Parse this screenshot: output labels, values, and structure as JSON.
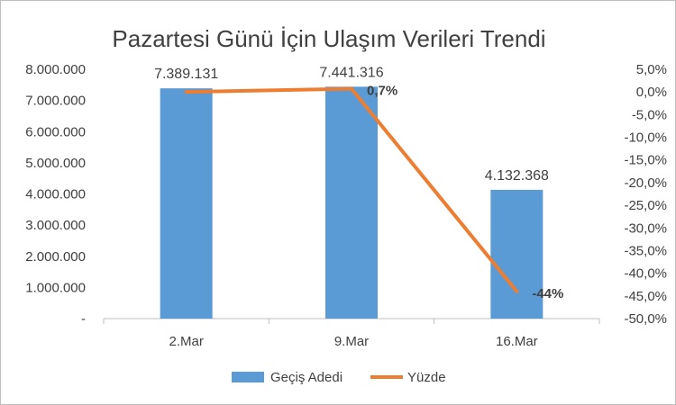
{
  "chart_data": {
    "type": "bar",
    "title": "Pazartesi Günü İçin Ulaşım Verileri Trendi",
    "categories": [
      "2.Mar",
      "9.Mar",
      "16.Mar"
    ],
    "series": [
      {
        "name": "Geçiş Adedi",
        "type": "bar",
        "axis": "primary",
        "values": [
          7389131,
          7441316,
          4132368
        ],
        "data_labels": [
          "7.389.131",
          "7.441.316",
          "4.132.368"
        ],
        "color": "#5b9bd5"
      },
      {
        "name": "Yüzde",
        "type": "line",
        "axis": "secondary",
        "values": [
          0,
          0.7,
          -44
        ],
        "data_labels": [
          "",
          "0,7%",
          "-44%"
        ],
        "color": "#ed7d31"
      }
    ],
    "primary_axis": {
      "ylim": [
        0,
        8000000
      ],
      "ticks": [
        0,
        1000000,
        2000000,
        3000000,
        4000000,
        5000000,
        6000000,
        7000000,
        8000000
      ],
      "tick_labels": [
        "-",
        "1.000.000",
        "2.000.000",
        "3.000.000",
        "4.000.000",
        "5.000.000",
        "6.000.000",
        "7.000.000",
        "8.000.000"
      ]
    },
    "secondary_axis": {
      "ylim": [
        -50,
        5
      ],
      "ticks": [
        5,
        0,
        -5,
        -10,
        -15,
        -20,
        -25,
        -30,
        -35,
        -40,
        -45,
        -50
      ],
      "tick_labels": [
        "5,0%",
        "0,0%",
        "-5,0%",
        "-10,0%",
        "-15,0%",
        "-20,0%",
        "-25,0%",
        "-30,0%",
        "-35,0%",
        "-40,0%",
        "-45,0%",
        "-50,0%"
      ]
    },
    "grid": false,
    "legend": "bottom"
  }
}
